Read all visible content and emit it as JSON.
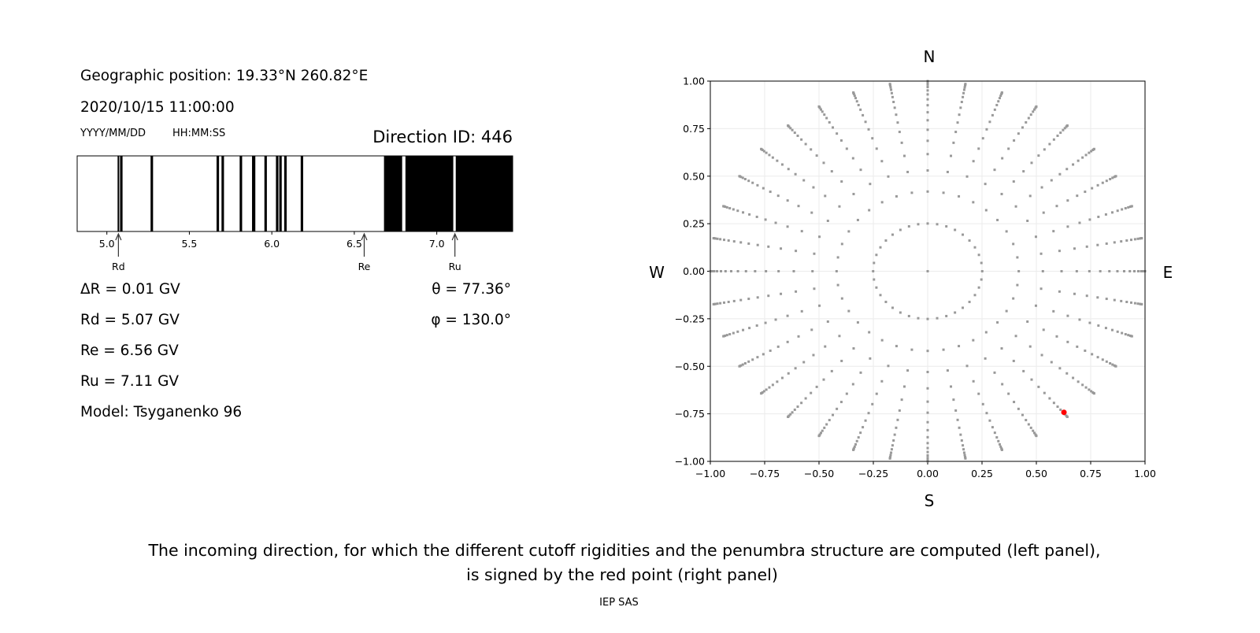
{
  "left_panel": {
    "position": "Geographic position: 19.33°N 260.82°E",
    "datetime": "2020/10/15 11:00:00",
    "date_format": "YYYY/MM/DD",
    "time_format": "HH:MM:SS",
    "direction_id": "Direction ID: 446",
    "delta_r": "ΔR = 0.01 GV",
    "rd": "Rd = 5.07 GV",
    "re": "Re = 6.56 GV",
    "ru": "Ru = 7.11 GV",
    "model": "Model: Tsyganenko 96",
    "theta": "θ = 77.36°",
    "phi": "φ = 130.0°"
  },
  "caption": {
    "line1": "The incoming direction, for which the different cutoff rigidities and the penumbra structure are computed (left panel),",
    "line2": "is signed by the red point (right panel)",
    "credit": "IEP SAS"
  },
  "chart_data": [
    {
      "type": "penumbra-bar",
      "xlim": [
        4.82,
        7.46
      ],
      "xticks": [
        "5.0",
        "5.5",
        "6.0",
        "6.5",
        "7.0"
      ],
      "xtick_values": [
        5.0,
        5.5,
        6.0,
        6.5,
        7.0
      ],
      "forbidden_bands_GV": [
        [
          5.065,
          5.075
        ],
        [
          5.08,
          5.095
        ],
        [
          5.265,
          5.28
        ],
        [
          5.665,
          5.68
        ],
        [
          5.695,
          5.71
        ],
        [
          5.805,
          5.82
        ],
        [
          5.88,
          5.9
        ],
        [
          5.955,
          5.97
        ],
        [
          6.025,
          6.04
        ],
        [
          6.045,
          6.06
        ],
        [
          6.075,
          6.09
        ],
        [
          6.175,
          6.19
        ],
        [
          6.68,
          6.79
        ],
        [
          6.81,
          7.1
        ],
        [
          7.115,
          7.46
        ]
      ],
      "markers": [
        {
          "label": "Rd",
          "value": 5.07
        },
        {
          "label": "Re",
          "value": 6.56
        },
        {
          "label": "Ru",
          "value": 7.11
        }
      ],
      "colors": {
        "forbidden": "#000000",
        "allowed": "#ffffff"
      }
    },
    {
      "type": "scatter",
      "xlim": [
        -1,
        1
      ],
      "ylim": [
        -1,
        1
      ],
      "xticks": [
        "−1.00",
        "−0.75",
        "−0.50",
        "−0.25",
        "0.00",
        "0.25",
        "0.50",
        "0.75",
        "1.00"
      ],
      "yticks": [
        "−1.00",
        "−0.75",
        "−0.50",
        "−0.25",
        "0.00",
        "0.25",
        "0.50",
        "0.75",
        "1.00"
      ],
      "tick_values": [
        -1,
        -0.75,
        -0.5,
        -0.25,
        0,
        0.25,
        0.5,
        0.75,
        1
      ],
      "grid": true,
      "compass": {
        "north": "N",
        "south": "S",
        "west": "W",
        "east": "E"
      },
      "grid_azimuth_step_deg": 10,
      "grid_radii": [
        0.251,
        0.419,
        0.53,
        0.616,
        0.686,
        0.744,
        0.794,
        0.836,
        0.873,
        0.904,
        0.93,
        0.951,
        0.969,
        0.982,
        0.992,
        0.998,
        1.0
      ],
      "center_point": [
        0,
        0
      ],
      "selected_point": [
        0.627,
        -0.742
      ],
      "colors": {
        "grid_points": "#999999",
        "selected": "#ff0000"
      }
    }
  ]
}
